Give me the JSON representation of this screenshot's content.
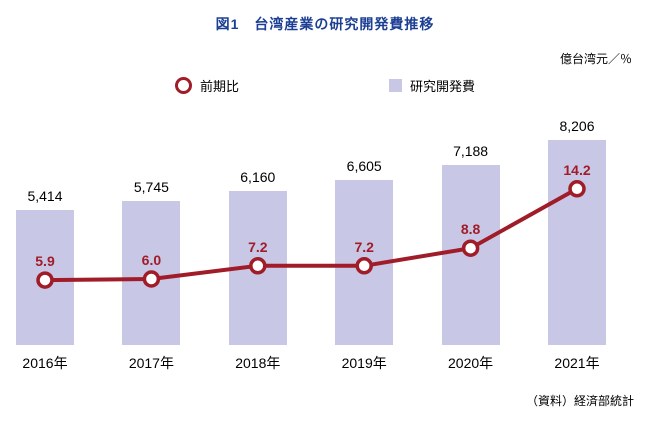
{
  "header": {
    "title": "図1　台湾産業の研究開発費推移",
    "unit_label": "億台湾元／％"
  },
  "legend": [
    {
      "label": "前期比",
      "marker": "open-circle",
      "color": "#a01c28"
    },
    {
      "label": "研究開発費",
      "marker": "square",
      "color": "#c9c7e6"
    }
  ],
  "source": "（資料）経済部統計",
  "colors": {
    "title": "#1c3f94",
    "bar": "#c9c7e6",
    "line": "#a01c28",
    "text": "#000000"
  },
  "chart_data": {
    "type": "combo-bar-line",
    "title": "図1　台湾産業の研究開発費推移",
    "unit": "億台湾元／％",
    "categories": [
      "2016年",
      "2017年",
      "2018年",
      "2019年",
      "2020年",
      "2021年"
    ],
    "series": [
      {
        "name": "研究開発費",
        "type": "bar",
        "unit": "億台湾元",
        "values": [
          5414,
          5745,
          6160,
          6605,
          7188,
          8206
        ],
        "labels": [
          "5,414",
          "5,745",
          "6,160",
          "6,605",
          "7,188",
          "8,206"
        ],
        "color": "#c9c7e6"
      },
      {
        "name": "前期比",
        "type": "line",
        "unit": "%",
        "values": [
          5.9,
          6.0,
          7.2,
          7.2,
          8.8,
          14.2
        ],
        "labels": [
          "5.9",
          "6.0",
          "7.2",
          "7.2",
          "8.8",
          "14.2"
        ],
        "color": "#a01c28"
      }
    ],
    "legend_position": "top",
    "grid": false,
    "source": "（資料）経済部統計"
  }
}
